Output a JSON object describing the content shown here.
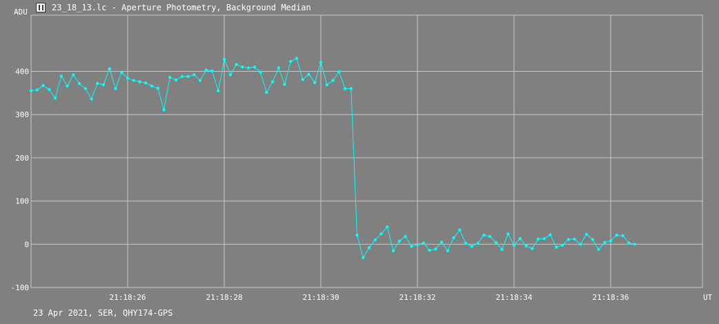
{
  "window": {
    "icon": "light-curve-icon",
    "title": "23_18_13.lc - Aperture Photometry, Background Median"
  },
  "footer": {
    "info": "23 Apr 2021, SER, QHY174-GPS"
  },
  "colors": {
    "background": "#808080",
    "grid": "#c8c8c8",
    "series": "#00ffff",
    "text": "#ffffff"
  },
  "chart_data": {
    "type": "line",
    "title": "",
    "xlabel": "UT",
    "ylabel": "ADU",
    "xlim": [
      "21:18:24.0",
      "21:18:37.9"
    ],
    "ylim": [
      -100,
      530
    ],
    "grid": true,
    "legend": "none",
    "x_ticks": [
      "21:18:26",
      "21:18:28",
      "21:18:30",
      "21:18:32",
      "21:18:34",
      "21:18:36"
    ],
    "y_ticks": [
      -100,
      0,
      100,
      200,
      300,
      400
    ],
    "series": [
      {
        "start_time": "21:18:24.0",
        "interval_s": 0.125,
        "values": [
          355,
          357,
          367,
          358,
          338,
          389,
          366,
          392,
          372,
          360,
          336,
          372,
          369,
          406,
          360,
          398,
          384,
          379,
          376,
          373,
          366,
          361,
          311,
          386,
          380,
          388,
          388,
          392,
          379,
          403,
          401,
          355,
          428,
          392,
          416,
          410,
          408,
          410,
          398,
          351,
          376,
          408,
          370,
          423,
          430,
          381,
          393,
          374,
          421,
          369,
          379,
          399,
          360,
          360,
          21,
          -31,
          -8,
          10,
          24,
          40,
          -15,
          7,
          18,
          -5,
          -1,
          3,
          -14,
          -11,
          5,
          -15,
          15,
          33,
          2,
          -5,
          2,
          21,
          18,
          4,
          -12,
          24,
          -2,
          13,
          -4,
          -10,
          12,
          13,
          22,
          -7,
          -2,
          11,
          12,
          0,
          23,
          11,
          -12,
          4,
          8,
          21,
          20,
          3,
          0
        ]
      }
    ]
  }
}
